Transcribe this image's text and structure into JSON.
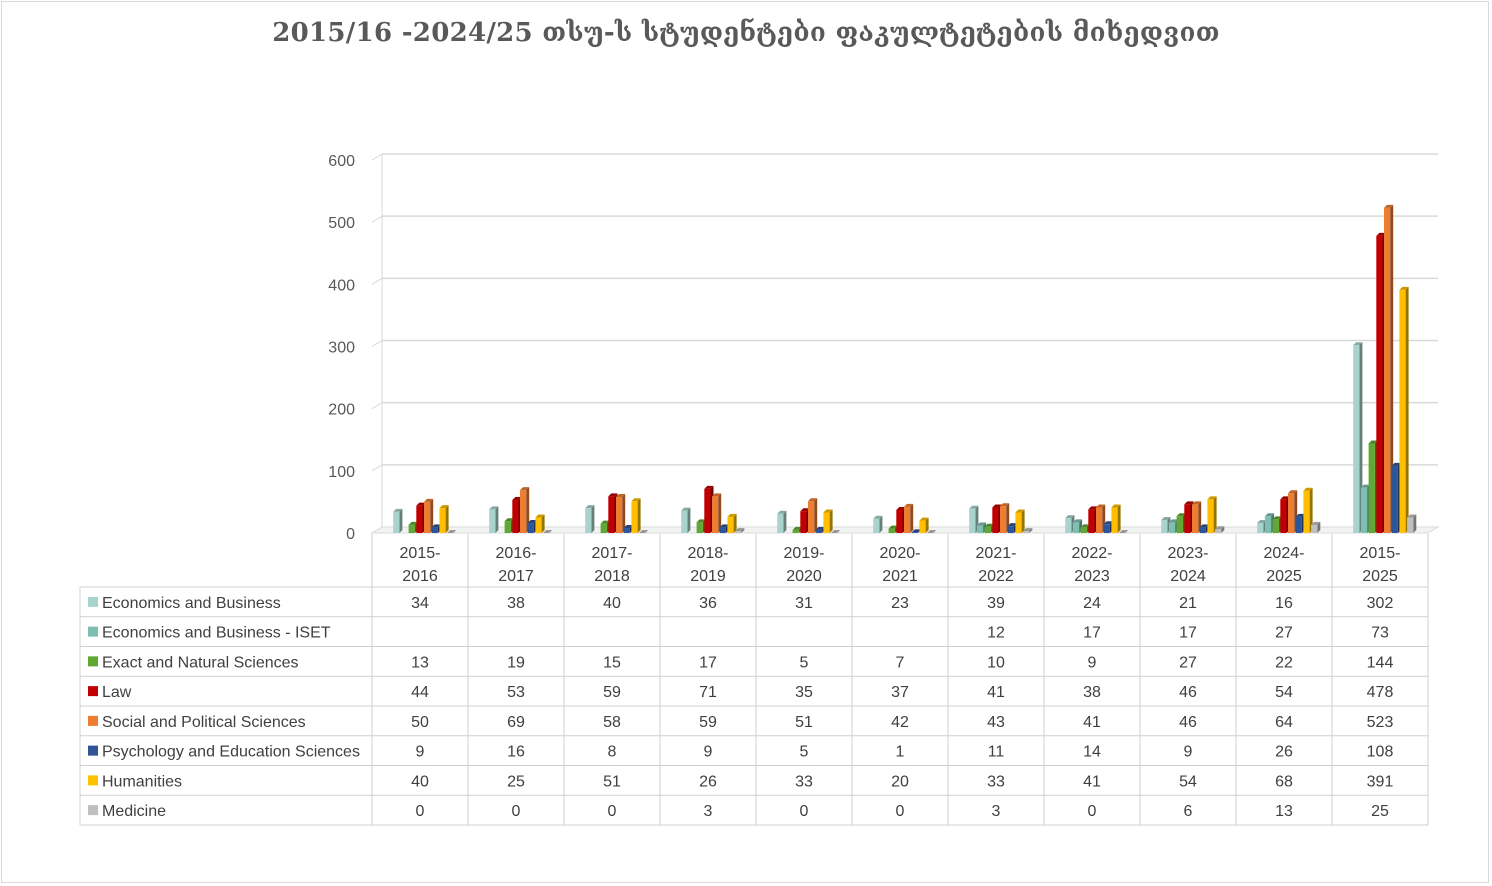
{
  "chart_data": {
    "type": "bar",
    "title": "2015/16 -2024/25 თსუ-ს სტუდენტები ფაკულტეტების მიხედვით",
    "categories": [
      "2015-2016",
      "2016-2017",
      "2017-2018",
      "2018-2019",
      "2019-2020",
      "2020-2021",
      "2021-2022",
      "2022-2023",
      "2023-2024",
      "2024-2025",
      "2015-2025"
    ],
    "ylim": [
      0,
      600
    ],
    "yticks": [
      0,
      100,
      200,
      300,
      400,
      500,
      600
    ],
    "grid": true,
    "legend": "data-table",
    "series": [
      {
        "name": "Economics and Business",
        "color": "#a9d3cd",
        "values": [
          34,
          38,
          40,
          36,
          31,
          23,
          39,
          24,
          21,
          16,
          302
        ]
      },
      {
        "name": "Economics and Business - ISET",
        "color": "#7fbfb2",
        "values": [
          null,
          null,
          null,
          null,
          null,
          null,
          12,
          17,
          17,
          27,
          73
        ]
      },
      {
        "name": "Exact and Natural Sciences",
        "color": "#5fa832",
        "values": [
          13,
          19,
          15,
          17,
          5,
          7,
          10,
          9,
          27,
          22,
          144
        ]
      },
      {
        "name": "Law",
        "color": "#c00000",
        "values": [
          44,
          53,
          59,
          71,
          35,
          37,
          41,
          38,
          46,
          54,
          478
        ]
      },
      {
        "name": "Social and Political Sciences",
        "color": "#ed7d31",
        "values": [
          50,
          69,
          58,
          59,
          51,
          42,
          43,
          41,
          46,
          64,
          523
        ]
      },
      {
        "name": "Psychology and Education Sciences",
        "color": "#2f5597",
        "values": [
          9,
          16,
          8,
          9,
          5,
          1,
          11,
          14,
          9,
          26,
          108
        ]
      },
      {
        "name": "Humanities",
        "color": "#ffc000",
        "values": [
          40,
          25,
          51,
          26,
          33,
          20,
          33,
          41,
          54,
          68,
          391
        ]
      },
      {
        "name": "Medicine",
        "color": "#bfbfbf",
        "values": [
          0,
          0,
          0,
          3,
          0,
          0,
          3,
          0,
          6,
          13,
          25
        ]
      }
    ]
  }
}
